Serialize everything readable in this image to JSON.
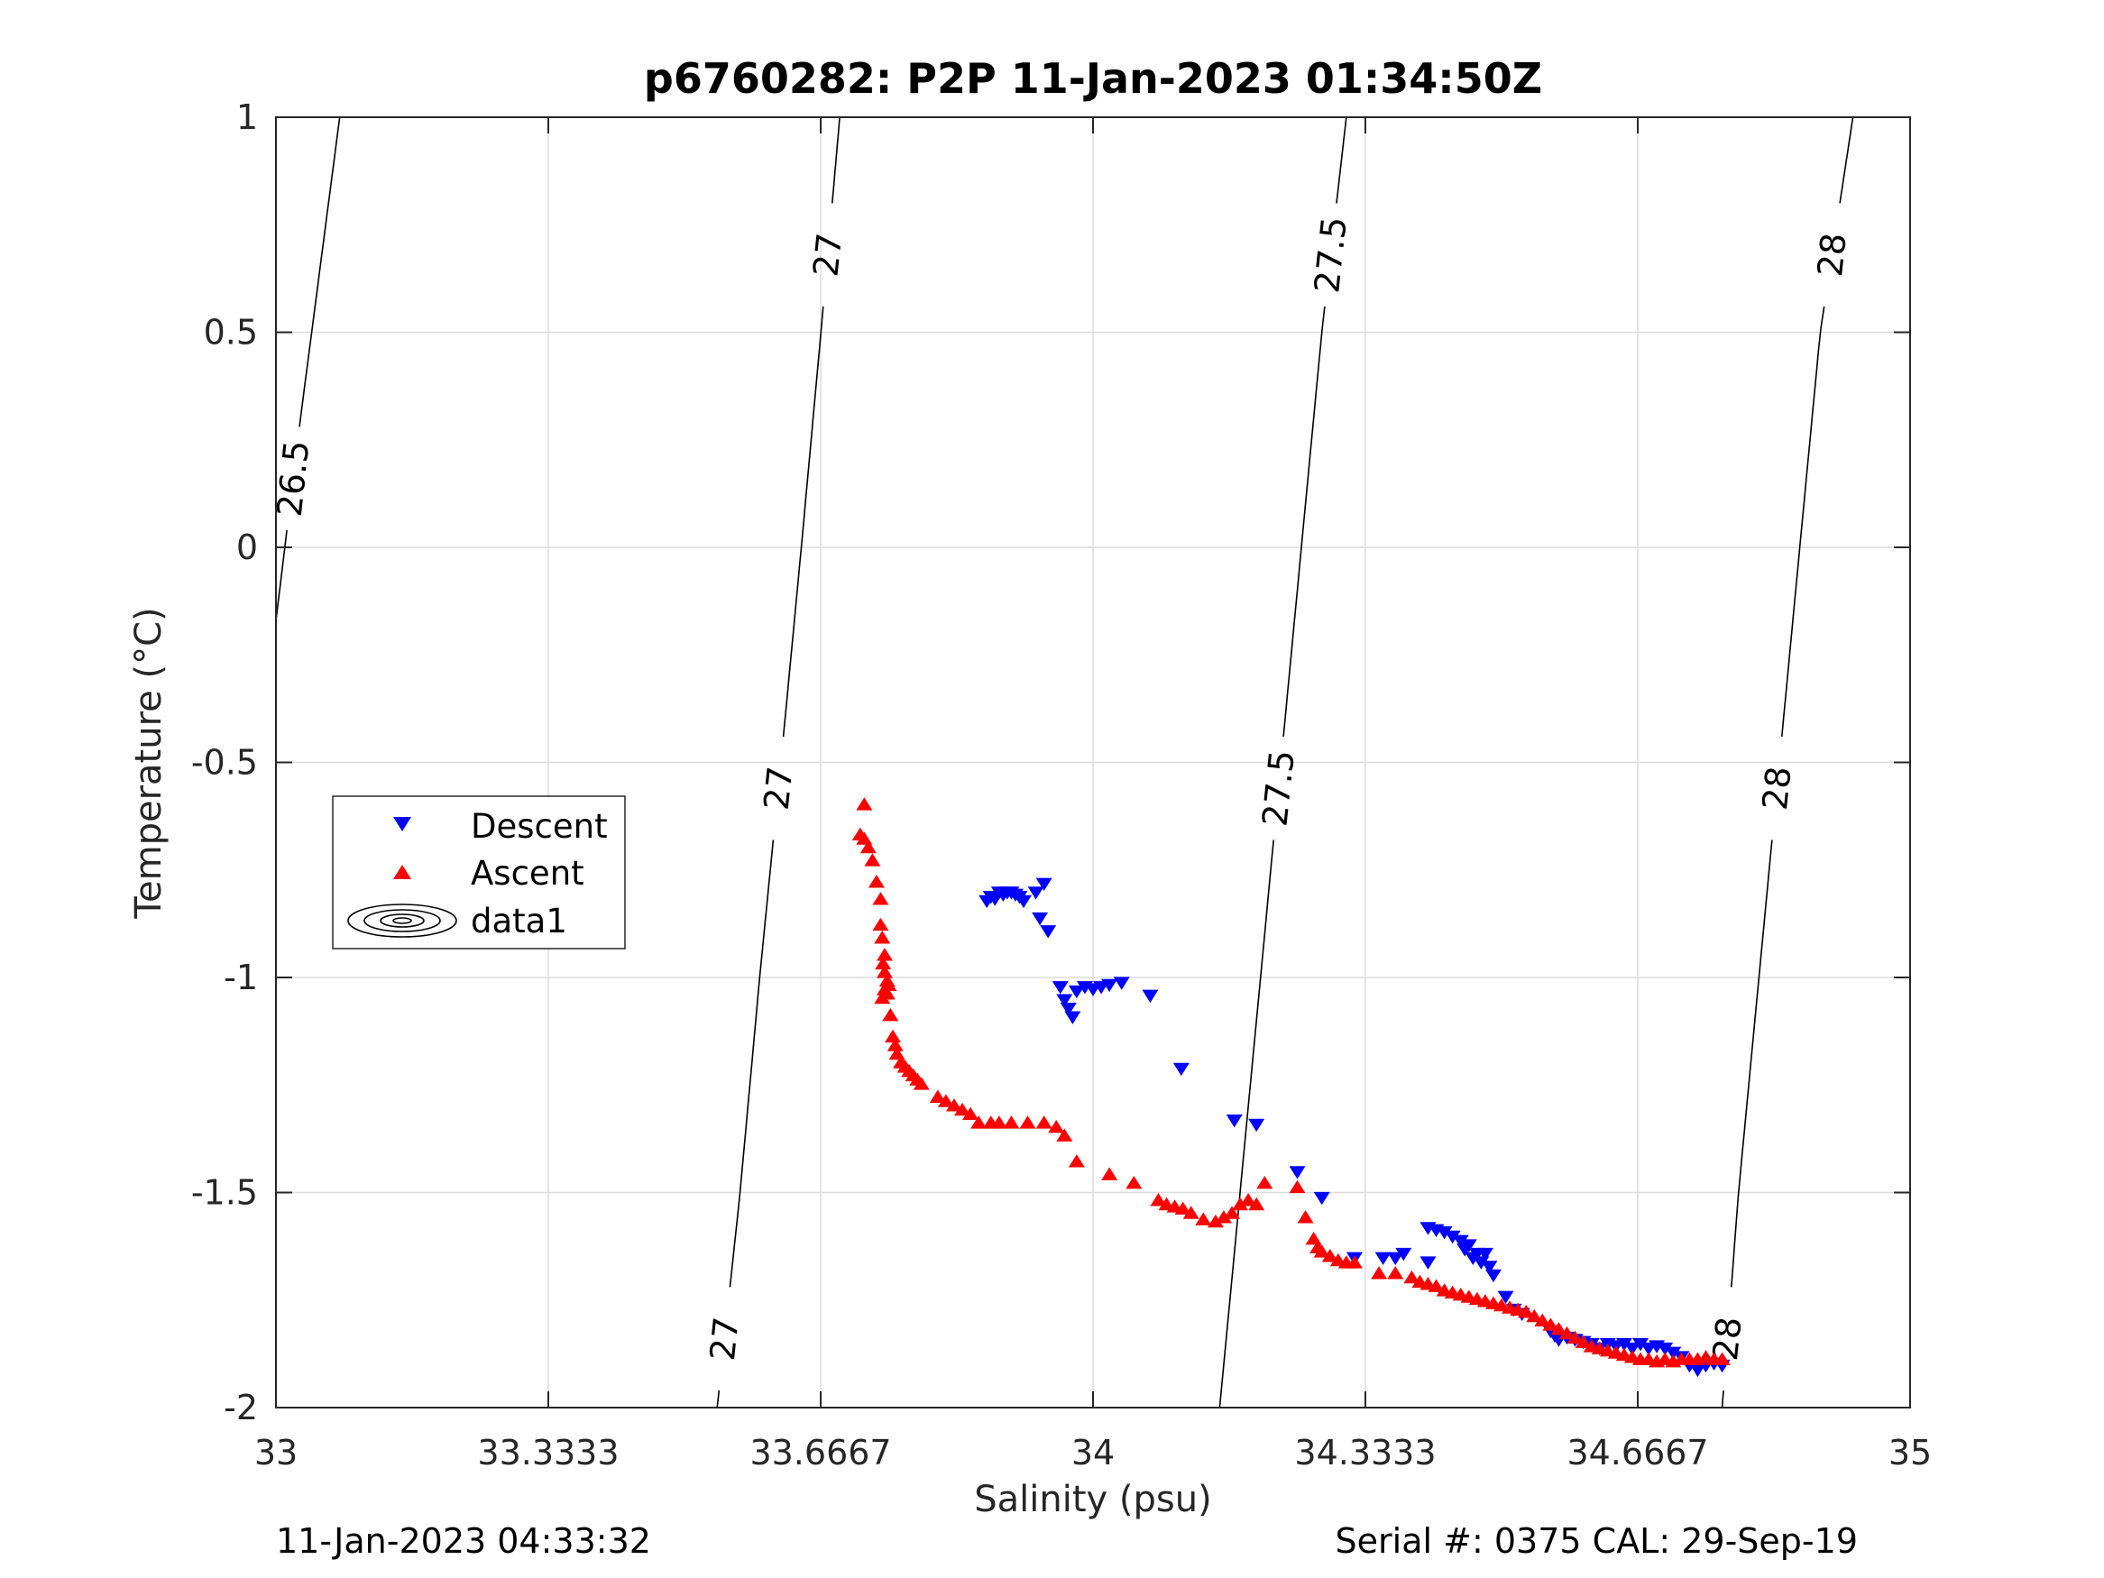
{
  "title": "p6760282: P2P 11-Jan-2023 01:34:50Z",
  "footer": {
    "left": "11-Jan-2023 04:33:32",
    "right": "Serial #: 0375  CAL: 29-Sep-19"
  },
  "chart_data": {
    "type": "scatter",
    "title": "p6760282: P2P 11-Jan-2023 01:34:50Z",
    "xlabel": "Salinity (psu)",
    "ylabel": "Temperature (°C)",
    "xlim": [
      33,
      35
    ],
    "ylim": [
      -2,
      1
    ],
    "grid": true,
    "x_ticks": [
      "33",
      "33.3333",
      "33.6667",
      "34",
      "34.3333",
      "34.6667",
      "35"
    ],
    "y_ticks": [
      "1",
      "0.5",
      "0",
      "-0.5",
      "-1",
      "-1.5",
      "-2"
    ],
    "legend": {
      "placement": "left-middle",
      "entries": [
        "Descent",
        "Ascent",
        "data1"
      ]
    },
    "colors": {
      "descent": "#0000ff",
      "ascent": "#ff0000",
      "contour": "#000000",
      "grid": "#dcdcdc"
    },
    "isopycnals": [
      {
        "label": "26.5",
        "points": [
          [
            33.0,
            -0.17
          ],
          [
            33.03,
            0.3
          ],
          [
            33.078,
            1.0
          ]
        ]
      },
      {
        "label": "27",
        "points": [
          [
            33.54,
            -2.0
          ],
          [
            33.568,
            -1.5
          ],
          [
            33.592,
            -1.0
          ],
          [
            33.618,
            -0.5
          ],
          [
            33.643,
            0.0
          ],
          [
            33.667,
            0.5
          ],
          [
            33.69,
            1.0
          ]
        ]
      },
      {
        "label": "27.5",
        "points": [
          [
            34.155,
            -2.0
          ],
          [
            34.18,
            -1.5
          ],
          [
            34.205,
            -1.0
          ],
          [
            34.23,
            -0.5
          ],
          [
            34.255,
            0.0
          ],
          [
            34.28,
            0.5
          ],
          [
            34.31,
            1.0
          ]
        ]
      },
      {
        "label": "28",
        "points": [
          [
            34.77,
            -2.0
          ],
          [
            34.79,
            -1.5
          ],
          [
            34.815,
            -1.0
          ],
          [
            34.84,
            -0.5
          ],
          [
            34.865,
            0.0
          ],
          [
            34.89,
            0.5
          ],
          [
            34.93,
            1.0
          ]
        ]
      }
    ],
    "series": [
      {
        "name": "Descent",
        "marker": "triangle-down",
        "points": [
          [
            33.87,
            -0.82
          ],
          [
            33.875,
            -0.81
          ],
          [
            33.88,
            -0.815
          ],
          [
            33.885,
            -0.8
          ],
          [
            33.89,
            -0.805
          ],
          [
            33.895,
            -0.8
          ],
          [
            33.9,
            -0.8
          ],
          [
            33.905,
            -0.805
          ],
          [
            33.91,
            -0.81
          ],
          [
            33.915,
            -0.82
          ],
          [
            33.93,
            -0.8
          ],
          [
            33.94,
            -0.78
          ],
          [
            33.935,
            -0.86
          ],
          [
            33.945,
            -0.89
          ],
          [
            33.96,
            -1.02
          ],
          [
            33.965,
            -1.05
          ],
          [
            33.97,
            -1.07
          ],
          [
            33.975,
            -1.09
          ],
          [
            33.98,
            -1.03
          ],
          [
            33.99,
            -1.02
          ],
          [
            34.0,
            -1.025
          ],
          [
            34.01,
            -1.02
          ],
          [
            34.02,
            -1.015
          ],
          [
            34.035,
            -1.01
          ],
          [
            34.07,
            -1.04
          ],
          [
            34.108,
            -1.21
          ],
          [
            34.173,
            -1.33
          ],
          [
            34.2,
            -1.34
          ],
          [
            34.25,
            -1.45
          ],
          [
            34.28,
            -1.51
          ],
          [
            34.32,
            -1.65
          ],
          [
            34.355,
            -1.65
          ],
          [
            34.37,
            -1.65
          ],
          [
            34.38,
            -1.64
          ],
          [
            34.41,
            -1.66
          ],
          [
            34.41,
            -1.58
          ],
          [
            34.42,
            -1.585
          ],
          [
            34.43,
            -1.59
          ],
          [
            34.44,
            -1.6
          ],
          [
            34.45,
            -1.61
          ],
          [
            34.455,
            -1.63
          ],
          [
            34.46,
            -1.62
          ],
          [
            34.465,
            -1.65
          ],
          [
            34.47,
            -1.64
          ],
          [
            34.475,
            -1.66
          ],
          [
            34.48,
            -1.64
          ],
          [
            34.485,
            -1.67
          ],
          [
            34.49,
            -1.69
          ],
          [
            34.505,
            -1.74
          ],
          [
            34.515,
            -1.77
          ],
          [
            34.525,
            -1.78
          ],
          [
            34.56,
            -1.82
          ],
          [
            34.565,
            -1.83
          ],
          [
            34.57,
            -1.84
          ],
          [
            34.58,
            -1.835
          ],
          [
            34.59,
            -1.84
          ],
          [
            34.6,
            -1.845
          ],
          [
            34.61,
            -1.85
          ],
          [
            34.62,
            -1.86
          ],
          [
            34.63,
            -1.85
          ],
          [
            34.64,
            -1.855
          ],
          [
            34.65,
            -1.85
          ],
          [
            34.66,
            -1.86
          ],
          [
            34.67,
            -1.85
          ],
          [
            34.68,
            -1.86
          ],
          [
            34.69,
            -1.855
          ],
          [
            34.7,
            -1.86
          ],
          [
            34.71,
            -1.87
          ],
          [
            34.72,
            -1.88
          ],
          [
            34.73,
            -1.9
          ],
          [
            34.74,
            -1.91
          ],
          [
            34.75,
            -1.9
          ],
          [
            34.76,
            -1.895
          ],
          [
            34.77,
            -1.9
          ]
        ]
      },
      {
        "name": "Ascent",
        "marker": "triangle-up",
        "points": [
          [
            33.72,
            -0.6
          ],
          [
            33.715,
            -0.67
          ],
          [
            33.72,
            -0.68
          ],
          [
            33.725,
            -0.7
          ],
          [
            33.73,
            -0.73
          ],
          [
            33.735,
            -0.78
          ],
          [
            33.74,
            -0.82
          ],
          [
            33.74,
            -0.88
          ],
          [
            33.742,
            -0.91
          ],
          [
            33.745,
            -0.95
          ],
          [
            33.743,
            -0.97
          ],
          [
            33.745,
            -0.99
          ],
          [
            33.748,
            -1.01
          ],
          [
            33.745,
            -1.03
          ],
          [
            33.742,
            -1.05
          ],
          [
            33.748,
            -1.04
          ],
          [
            33.75,
            -1.02
          ],
          [
            33.752,
            -1.09
          ],
          [
            33.755,
            -1.14
          ],
          [
            33.758,
            -1.16
          ],
          [
            33.76,
            -1.18
          ],
          [
            33.765,
            -1.2
          ],
          [
            33.77,
            -1.21
          ],
          [
            33.775,
            -1.22
          ],
          [
            33.78,
            -1.23
          ],
          [
            33.785,
            -1.24
          ],
          [
            33.79,
            -1.25
          ],
          [
            33.81,
            -1.28
          ],
          [
            33.82,
            -1.29
          ],
          [
            33.83,
            -1.3
          ],
          [
            33.84,
            -1.31
          ],
          [
            33.85,
            -1.32
          ],
          [
            33.86,
            -1.34
          ],
          [
            33.875,
            -1.34
          ],
          [
            33.885,
            -1.34
          ],
          [
            33.9,
            -1.34
          ],
          [
            33.92,
            -1.34
          ],
          [
            33.94,
            -1.34
          ],
          [
            33.955,
            -1.35
          ],
          [
            33.965,
            -1.37
          ],
          [
            33.98,
            -1.43
          ],
          [
            34.02,
            -1.46
          ],
          [
            34.05,
            -1.48
          ],
          [
            34.08,
            -1.52
          ],
          [
            34.09,
            -1.53
          ],
          [
            34.1,
            -1.535
          ],
          [
            34.11,
            -1.54
          ],
          [
            34.12,
            -1.55
          ],
          [
            34.135,
            -1.565
          ],
          [
            34.15,
            -1.57
          ],
          [
            34.16,
            -1.56
          ],
          [
            34.17,
            -1.55
          ],
          [
            34.18,
            -1.53
          ],
          [
            34.19,
            -1.52
          ],
          [
            34.2,
            -1.53
          ],
          [
            34.21,
            -1.48
          ],
          [
            34.25,
            -1.49
          ],
          [
            34.26,
            -1.56
          ],
          [
            34.27,
            -1.61
          ],
          [
            34.275,
            -1.63
          ],
          [
            34.28,
            -1.64
          ],
          [
            34.29,
            -1.65
          ],
          [
            34.3,
            -1.66
          ],
          [
            34.31,
            -1.665
          ],
          [
            34.32,
            -1.665
          ],
          [
            34.35,
            -1.69
          ],
          [
            34.37,
            -1.69
          ],
          [
            34.39,
            -1.7
          ],
          [
            34.4,
            -1.71
          ],
          [
            34.41,
            -1.715
          ],
          [
            34.42,
            -1.72
          ],
          [
            34.43,
            -1.73
          ],
          [
            34.44,
            -1.735
          ],
          [
            34.45,
            -1.74
          ],
          [
            34.46,
            -1.745
          ],
          [
            34.47,
            -1.75
          ],
          [
            34.48,
            -1.755
          ],
          [
            34.49,
            -1.76
          ],
          [
            34.5,
            -1.765
          ],
          [
            34.51,
            -1.77
          ],
          [
            34.52,
            -1.775
          ],
          [
            34.53,
            -1.78
          ],
          [
            34.54,
            -1.79
          ],
          [
            34.55,
            -1.8
          ],
          [
            34.56,
            -1.81
          ],
          [
            34.57,
            -1.82
          ],
          [
            34.58,
            -1.83
          ],
          [
            34.59,
            -1.84
          ],
          [
            34.6,
            -1.85
          ],
          [
            34.61,
            -1.86
          ],
          [
            34.62,
            -1.865
          ],
          [
            34.63,
            -1.87
          ],
          [
            34.64,
            -1.875
          ],
          [
            34.65,
            -1.88
          ],
          [
            34.66,
            -1.885
          ],
          [
            34.67,
            -1.89
          ],
          [
            34.68,
            -1.89
          ],
          [
            34.69,
            -1.895
          ],
          [
            34.7,
            -1.89
          ],
          [
            34.71,
            -1.895
          ],
          [
            34.72,
            -1.89
          ],
          [
            34.73,
            -1.89
          ],
          [
            34.74,
            -1.89
          ],
          [
            34.75,
            -1.885
          ],
          [
            34.76,
            -1.89
          ],
          [
            34.77,
            -1.89
          ]
        ]
      }
    ]
  }
}
